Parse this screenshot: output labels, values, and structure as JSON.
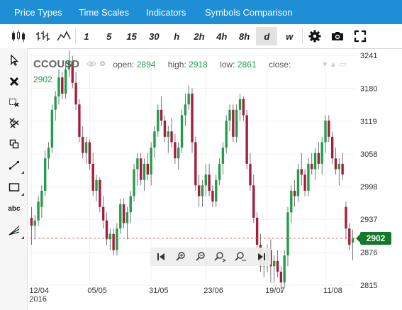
{
  "menu": {
    "price_types": "Price Types",
    "time_scales": "Time Scales",
    "indicators": "Indicators",
    "symbols_comparison": "Symbols Comparison"
  },
  "toolbar": {
    "icons": [
      "candlestick-icon",
      "ohlc-bars-icon",
      "line-chart-icon"
    ],
    "timeframes": [
      "1",
      "5",
      "15",
      "30",
      "h",
      "2h",
      "4h",
      "8h",
      "d",
      "w"
    ],
    "active_timeframe": "d",
    "right_icons": [
      "gear-icon",
      "camera-icon",
      "fullscreen-icon"
    ]
  },
  "left_tools": {
    "icons": [
      "cursor-icon",
      "delete-icon",
      "delete-selection-icon",
      "delete-all-icon",
      "clone-icon",
      "trendline-icon",
      "rectangle-icon",
      "text-icon",
      "fan-icon"
    ],
    "text_label": "abc"
  },
  "legend": {
    "symbol": "CCOUSD",
    "open_label": "open:",
    "open": "2894",
    "high_label": "high:",
    "high": "2918",
    "low_label": "low:",
    "low": "2861",
    "close_label": "close:",
    "close": "2902"
  },
  "current_price": "2902",
  "colors": {
    "menu_bg": "#1e8fd6",
    "up": "#1f9e4a",
    "down": "#a51d3a",
    "price_tag": "#137a2b",
    "price_line": "#e26a6a"
  },
  "chart_data": {
    "type": "candlestick",
    "y_ticks": [
      3241,
      3180,
      3119,
      3058,
      2998,
      2937,
      2876,
      2815
    ],
    "ylim": [
      2815,
      3241
    ],
    "x_ticks": [
      {
        "label": "12/04",
        "sub": "2016",
        "index": 0
      },
      {
        "label": "05/05",
        "index": 17
      },
      {
        "label": "31/05",
        "index": 35
      },
      {
        "label": "23/06",
        "index": 51
      },
      {
        "label": "19/07",
        "index": 69
      },
      {
        "label": "11/08",
        "index": 86
      }
    ],
    "candles": [
      [
        2940,
        2960,
        2890,
        2925
      ],
      [
        2925,
        2945,
        2900,
        2935
      ],
      [
        2935,
        2980,
        2925,
        2970
      ],
      [
        2960,
        3000,
        2940,
        2990
      ],
      [
        2990,
        3065,
        2980,
        3050
      ],
      [
        3050,
        3080,
        3030,
        3070
      ],
      [
        3070,
        3150,
        3060,
        3140
      ],
      [
        3140,
        3175,
        3120,
        3165
      ],
      [
        3165,
        3215,
        3150,
        3200
      ],
      [
        3200,
        3210,
        3160,
        3170
      ],
      [
        3170,
        3230,
        3160,
        3215
      ],
      [
        3215,
        3250,
        3200,
        3230
      ],
      [
        3230,
        3240,
        3180,
        3190
      ],
      [
        3190,
        3210,
        3140,
        3150
      ],
      [
        3150,
        3160,
        3080,
        3090
      ],
      [
        3090,
        3110,
        3050,
        3060
      ],
      [
        3060,
        3090,
        3040,
        3080
      ],
      [
        3080,
        3085,
        3030,
        3040
      ],
      [
        3040,
        3060,
        2980,
        2990
      ],
      [
        2990,
        3020,
        2970,
        3010
      ],
      [
        3010,
        3015,
        2950,
        2960
      ],
      [
        2960,
        2980,
        2920,
        2935
      ],
      [
        2935,
        2950,
        2890,
        2900
      ],
      [
        2900,
        2920,
        2880,
        2910
      ],
      [
        2910,
        2920,
        2870,
        2880
      ],
      [
        2880,
        2930,
        2870,
        2920
      ],
      [
        2920,
        2975,
        2910,
        2965
      ],
      [
        2965,
        2975,
        2920,
        2930
      ],
      [
        2930,
        2960,
        2900,
        2950
      ],
      [
        2950,
        2990,
        2930,
        2980
      ],
      [
        2980,
        3040,
        2970,
        3030
      ],
      [
        3030,
        3060,
        3000,
        3050
      ],
      [
        3050,
        3060,
        3000,
        3010
      ],
      [
        3010,
        3050,
        2990,
        3040
      ],
      [
        3040,
        3060,
        3010,
        3020
      ],
      [
        3020,
        3080,
        3000,
        3070
      ],
      [
        3070,
        3110,
        3050,
        3100
      ],
      [
        3100,
        3150,
        3090,
        3140
      ],
      [
        3140,
        3165,
        3110,
        3120
      ],
      [
        3120,
        3130,
        3080,
        3090
      ],
      [
        3090,
        3110,
        3060,
        3100
      ],
      [
        3100,
        3125,
        3070,
        3080
      ],
      [
        3080,
        3095,
        3040,
        3050
      ],
      [
        3050,
        3080,
        3030,
        3070
      ],
      [
        3070,
        3140,
        3060,
        3130
      ],
      [
        3130,
        3170,
        3110,
        3150
      ],
      [
        3150,
        3185,
        3140,
        3170
      ],
      [
        3170,
        3180,
        3060,
        3080
      ],
      [
        3080,
        3090,
        2990,
        3000
      ],
      [
        3000,
        3020,
        2960,
        2980
      ],
      [
        2980,
        3010,
        2960,
        3000
      ],
      [
        3000,
        3040,
        2980,
        3020
      ],
      [
        3020,
        3040,
        2980,
        2990
      ],
      [
        2990,
        3000,
        2960,
        2970
      ],
      [
        2970,
        3020,
        2960,
        3010
      ],
      [
        3010,
        3050,
        3000,
        3040
      ],
      [
        3040,
        3080,
        3020,
        3070
      ],
      [
        3070,
        3130,
        3060,
        3120
      ],
      [
        3120,
        3150,
        3100,
        3140
      ],
      [
        3140,
        3150,
        3080,
        3090
      ],
      [
        3090,
        3150,
        3080,
        3140
      ],
      [
        3140,
        3170,
        3120,
        3160
      ],
      [
        3160,
        3165,
        3120,
        3130
      ],
      [
        3130,
        3140,
        3030,
        3040
      ],
      [
        3040,
        3060,
        2990,
        3000
      ],
      [
        3000,
        3020,
        2930,
        2940
      ],
      [
        2940,
        2950,
        2880,
        2890
      ],
      [
        2890,
        2910,
        2840,
        2850
      ],
      [
        2850,
        2870,
        2830,
        2860
      ],
      [
        2860,
        2890,
        2840,
        2880
      ],
      [
        2880,
        2900,
        2820,
        2850
      ],
      [
        2850,
        2870,
        2820,
        2860
      ],
      [
        2860,
        2880,
        2830,
        2840
      ],
      [
        2840,
        2850,
        2800,
        2820
      ],
      [
        2820,
        2880,
        2810,
        2870
      ],
      [
        2870,
        2960,
        2850,
        2950
      ],
      [
        2950,
        3000,
        2930,
        2990
      ],
      [
        2990,
        3010,
        2960,
        2980
      ],
      [
        2980,
        3040,
        2970,
        3030
      ],
      [
        3030,
        3060,
        3000,
        3020
      ],
      [
        3020,
        3030,
        2980,
        2990
      ],
      [
        2990,
        3050,
        2980,
        3040
      ],
      [
        3040,
        3060,
        3020,
        3030
      ],
      [
        3030,
        3070,
        3010,
        3060
      ],
      [
        3060,
        3080,
        3030,
        3040
      ],
      [
        3040,
        3090,
        3020,
        3080
      ],
      [
        3080,
        3130,
        3060,
        3120
      ],
      [
        3120,
        3130,
        3080,
        3090
      ],
      [
        3090,
        3100,
        3040,
        3050
      ],
      [
        3050,
        3070,
        3020,
        3030
      ],
      [
        3030,
        3050,
        3000,
        3040
      ],
      [
        3040,
        3060,
        3010,
        3020
      ],
      [
        2960,
        2970,
        2900,
        2920
      ],
      [
        2920,
        2930,
        2880,
        2890
      ],
      [
        2894,
        2918,
        2861,
        2902
      ]
    ]
  },
  "zoombar": {
    "icons": [
      "scroll-left-icon",
      "zoom-in-icon",
      "zoom-out-icon",
      "zoom-in-forward-icon",
      "zoom-reset-icon",
      "scroll-right-icon"
    ]
  }
}
